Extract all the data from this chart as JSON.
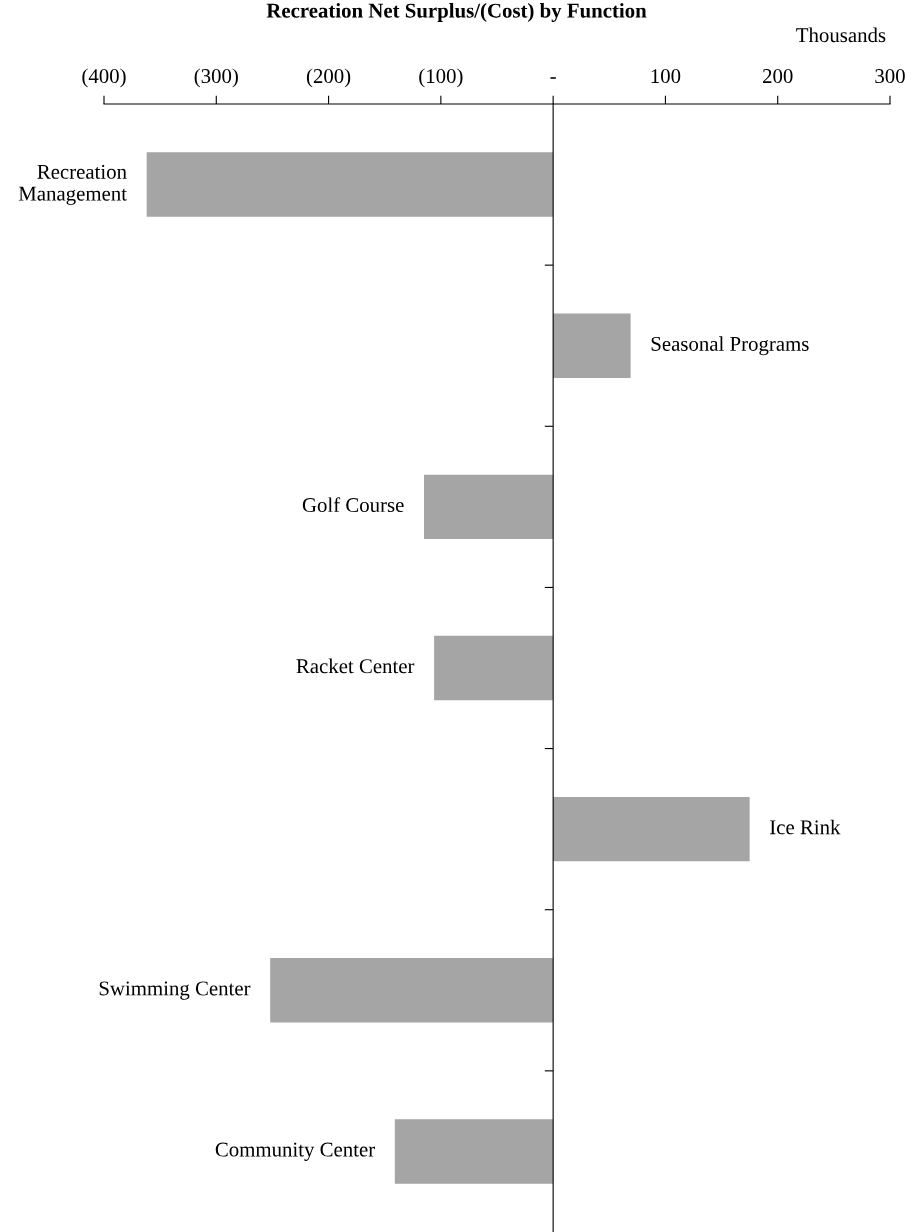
{
  "chart_data": {
    "type": "bar",
    "orientation": "horizontal",
    "title": "Recreation Net Surplus/(Cost) by Function",
    "xlabel": "Thousands",
    "categories": [
      "Recreation Management",
      "Seasonal Programs",
      "Golf Course",
      "Racket Center",
      "Ice Rink",
      "Swimming Center",
      "Community Center"
    ],
    "values": [
      -362,
      69,
      -115,
      -106,
      175,
      -252,
      -141
    ],
    "color": "#a5a5a5",
    "xlim": [
      -400,
      300
    ],
    "xticks": [
      {
        "value": -400,
        "label": "(400)"
      },
      {
        "value": -300,
        "label": "(300)"
      },
      {
        "value": -200,
        "label": "(200)"
      },
      {
        "value": -100,
        "label": "(100)"
      },
      {
        "value": 0,
        "label": "-"
      },
      100,
      200,
      300
    ],
    "legend": false
  }
}
